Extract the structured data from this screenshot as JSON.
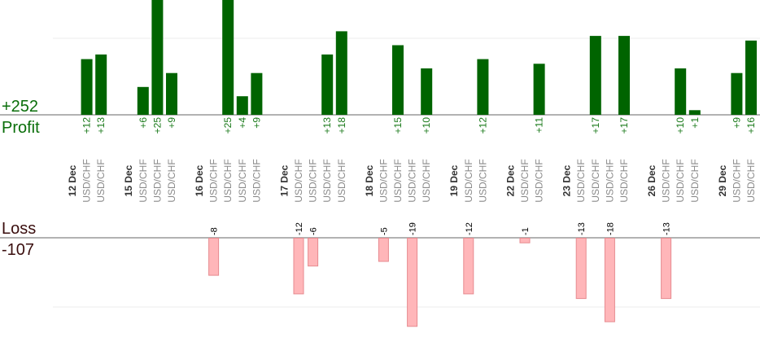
{
  "summary": {
    "profit_total": "+252",
    "profit_label": "Profit",
    "loss_label": "Loss",
    "loss_total": "-107"
  },
  "chart_data": {
    "type": "bar",
    "profit_color": "#006400",
    "loss_color": "#ffb6b9",
    "groups": [
      {
        "date": "12 Dec",
        "trades": [
          {
            "symbol": "USD/CHF",
            "value": 12,
            "label": "+12"
          },
          {
            "symbol": "USD/CHF",
            "value": 13,
            "label": "+13"
          }
        ]
      },
      {
        "date": "15 Dec",
        "trades": [
          {
            "symbol": "USD/CHF",
            "value": 6,
            "label": "+6"
          },
          {
            "symbol": "USD/CHF",
            "value": 25,
            "label": "+25"
          },
          {
            "symbol": "USD/CHF",
            "value": 9,
            "label": "+9"
          }
        ]
      },
      {
        "date": "16 Dec",
        "trades": [
          {
            "symbol": "USD/CHF",
            "value": -8,
            "label": "-8"
          },
          {
            "symbol": "USD/CHF",
            "value": 25,
            "label": "+25"
          },
          {
            "symbol": "USD/CHF",
            "value": 4,
            "label": "+4"
          },
          {
            "symbol": "USD/CHF",
            "value": 9,
            "label": "+9"
          }
        ]
      },
      {
        "date": "17 Dec",
        "trades": [
          {
            "symbol": "USD/CHF",
            "value": -12,
            "label": "-12"
          },
          {
            "symbol": "USD/CHF",
            "value": -6,
            "label": "-6"
          },
          {
            "symbol": "USD/CHF",
            "value": 13,
            "label": "+13"
          },
          {
            "symbol": "USD/CHF",
            "value": 18,
            "label": "+18"
          }
        ]
      },
      {
        "date": "18 Dec",
        "trades": [
          {
            "symbol": "USD/CHF",
            "value": -5,
            "label": "-5"
          },
          {
            "symbol": "USD/CHF",
            "value": 15,
            "label": "+15"
          },
          {
            "symbol": "USD/CHF",
            "value": -19,
            "label": "-19"
          },
          {
            "symbol": "USD/CHF",
            "value": 10,
            "label": "+10"
          }
        ]
      },
      {
        "date": "19 Dec",
        "trades": [
          {
            "symbol": "USD/CHF",
            "value": -12,
            "label": "-12"
          },
          {
            "symbol": "USD/CHF",
            "value": 12,
            "label": "+12"
          }
        ]
      },
      {
        "date": "22 Dec",
        "trades": [
          {
            "symbol": "USD/CHF",
            "value": -1,
            "label": "-1"
          },
          {
            "symbol": "USD/CHF",
            "value": 11,
            "label": "+11"
          }
        ]
      },
      {
        "date": "23 Dec",
        "trades": [
          {
            "symbol": "USD/CHF",
            "value": -13,
            "label": "-13"
          },
          {
            "symbol": "USD/CHF",
            "value": 17,
            "label": "+17"
          },
          {
            "symbol": "USD/CHF",
            "value": -18,
            "label": "-18"
          },
          {
            "symbol": "USD/CHF",
            "value": 17,
            "label": "+17"
          }
        ]
      },
      {
        "date": "26 Dec",
        "trades": [
          {
            "symbol": "USD/CHF",
            "value": -13,
            "label": "-13"
          },
          {
            "symbol": "USD/CHF",
            "value": 10,
            "label": "+10"
          },
          {
            "symbol": "USD/CHF",
            "value": 1,
            "label": "+1"
          }
        ]
      },
      {
        "date": "29 Dec",
        "trades": [
          {
            "symbol": "USD/CHF",
            "value": 9,
            "label": "+9"
          },
          {
            "symbol": "USD/CHF",
            "value": 16,
            "label": "+16"
          }
        ]
      }
    ]
  }
}
